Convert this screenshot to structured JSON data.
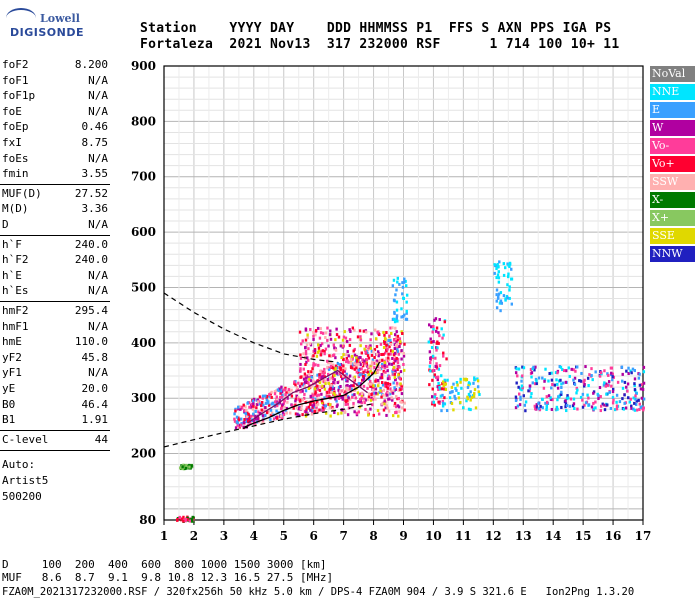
{
  "logo": {
    "line1": "Lowell",
    "line2": "DIGISONDE"
  },
  "header": {
    "line1": "Station    YYYY DAY    DDD HHMMSS P1  FFS S AXN PPS IGA PS",
    "line2": "Fortaleza  2021 Nov13  317 232000 RSF      1 714 100 10+ 11"
  },
  "params": [
    {
      "k": "foF2",
      "v": "8.200"
    },
    {
      "k": "foF1",
      "v": "N/A"
    },
    {
      "k": "foF1p",
      "v": "N/A"
    },
    {
      "k": "foE",
      "v": "N/A"
    },
    {
      "k": "foEp",
      "v": "0.46"
    },
    {
      "k": "fxI",
      "v": "8.75"
    },
    {
      "k": "foEs",
      "v": "N/A"
    },
    {
      "k": "fmin",
      "v": "3.55"
    },
    {
      "k": "MUF(D)",
      "v": "27.52"
    },
    {
      "k": "M(D)",
      "v": "3.36"
    },
    {
      "k": "D",
      "v": "N/A"
    },
    {
      "k": "h`F",
      "v": "240.0"
    },
    {
      "k": "h`F2",
      "v": "240.0"
    },
    {
      "k": "h`E",
      "v": "N/A"
    },
    {
      "k": "h`Es",
      "v": "N/A"
    },
    {
      "k": "hmF2",
      "v": "295.4"
    },
    {
      "k": "hmF1",
      "v": "N/A"
    },
    {
      "k": "hmE",
      "v": "110.0"
    },
    {
      "k": "yF2",
      "v": "45.8"
    },
    {
      "k": "yF1",
      "v": "N/A"
    },
    {
      "k": "yE",
      "v": "20.0"
    },
    {
      "k": "B0",
      "v": "46.4"
    },
    {
      "k": "B1",
      "v": "1.91"
    },
    {
      "k": "C-level",
      "v": "44"
    }
  ],
  "autoscaling": {
    "label": "Auto:",
    "software": "Artist5",
    "version": "500200"
  },
  "legend": [
    {
      "label": "NoVal",
      "color": "#808080",
      "text": "#ffffff"
    },
    {
      "label": "NNE",
      "color": "#00e5ff",
      "text": "#ffffff"
    },
    {
      "label": "E",
      "color": "#3aa0ff",
      "text": "#ffffff"
    },
    {
      "label": "W",
      "color": "#b000a0",
      "text": "#ffffff"
    },
    {
      "label": "Vo-",
      "color": "#ff3c9a",
      "text": "#ffffff"
    },
    {
      "label": "Vo+",
      "color": "#ff0030",
      "text": "#ffffff"
    },
    {
      "label": "SSW",
      "color": "#ffb0b0",
      "text": "#ffffff"
    },
    {
      "label": "X-",
      "color": "#007a00",
      "text": "#ffffff"
    },
    {
      "label": "X+",
      "color": "#88c860",
      "text": "#ffffff"
    },
    {
      "label": "SSE",
      "color": "#e0d800",
      "text": "#ffffff"
    },
    {
      "label": "NNW",
      "color": "#2020c0",
      "text": "#ffffff"
    }
  ],
  "footer": {
    "line1": "D     100  200  400  600  800 1000 1500 3000 [km]",
    "line2": "MUF   8.6  8.7  9.1  9.8 10.8 12.3 16.5 27.5 [MHz]",
    "line3": "FZA0M_2021317232000.RSF / 320fx256h 50 kHz 5.0 km / DPS-4 FZA0M 904 / 3.9 S 321.6 E   Ion2Png 1.3.20"
  },
  "chart_data": {
    "type": "scatter",
    "xlabel": "",
    "ylabel": "",
    "xlim": [
      1,
      17
    ],
    "ylim": [
      80,
      900
    ],
    "x_ticks": [
      1,
      2,
      3,
      4,
      5,
      6,
      7,
      8,
      9,
      10,
      11,
      12,
      13,
      14,
      15,
      16,
      17
    ],
    "y_ticks": [
      80,
      200,
      300,
      400,
      500,
      600,
      700,
      800,
      900
    ],
    "grid": true,
    "profile_dashed": {
      "x": [
        1.0,
        2.0,
        3.0,
        4.0,
        5.0,
        6.0,
        6.8
      ],
      "y": [
        490,
        455,
        425,
        400,
        380,
        370,
        365
      ]
    },
    "trace_lower_dashed": {
      "x": [
        1.0,
        2.0,
        3.0,
        4.0,
        5.0,
        6.0,
        7.0,
        8.0
      ],
      "y": [
        212,
        225,
        238,
        250,
        262,
        272,
        280,
        290
      ]
    },
    "trace_o_solid": {
      "x": [
        3.7,
        4.0,
        4.5,
        5.0,
        5.5,
        6.0,
        6.5,
        7.0,
        7.5,
        8.0,
        8.2
      ],
      "y": [
        248,
        255,
        265,
        278,
        288,
        295,
        300,
        305,
        320,
        345,
        365
      ]
    },
    "trace_x_solid": {
      "x": [
        3.8,
        4.2,
        4.8,
        5.3,
        5.8,
        6.3,
        6.8,
        7.3,
        7.8
      ],
      "y": [
        255,
        270,
        290,
        310,
        320,
        335,
        350,
        330,
        310
      ]
    },
    "echo_clusters": [
      {
        "x": [
          3.3,
          8.9
        ],
        "y": [
          245,
          380
        ],
        "colors": [
          "#ff3c9a",
          "#ff0030",
          "#b000a0",
          "#ffb0b0",
          "#3aa0ff"
        ]
      },
      {
        "x": [
          5.5,
          9.0
        ],
        "y": [
          270,
          430
        ],
        "colors": [
          "#ff3c9a",
          "#ff0030",
          "#b000a0",
          "#e0d800",
          "#ffb0b0"
        ]
      },
      {
        "x": [
          9.8,
          10.4
        ],
        "y": [
          290,
          450
        ],
        "colors": [
          "#ff3c9a",
          "#ff0030",
          "#b000a0",
          "#00e5ff"
        ]
      },
      {
        "x": [
          10.2,
          11.5
        ],
        "y": [
          280,
          340
        ],
        "colors": [
          "#e0d800",
          "#00e5ff",
          "#3aa0ff"
        ]
      },
      {
        "x": [
          12.7,
          17.0
        ],
        "y": [
          280,
          360
        ],
        "colors": [
          "#b000a0",
          "#ff3c9a",
          "#00e5ff",
          "#3aa0ff",
          "#2020c0"
        ]
      },
      {
        "x": [
          1.4,
          2.0
        ],
        "y": [
          80,
          88
        ],
        "colors": [
          "#ff0030",
          "#007a00",
          "#ff3c9a"
        ]
      },
      {
        "x": [
          1.5,
          1.9
        ],
        "y": [
          175,
          182
        ],
        "colors": [
          "#007a00",
          "#88c860"
        ]
      },
      {
        "x": [
          8.6,
          9.1
        ],
        "y": [
          440,
          520
        ],
        "colors": [
          "#00e5ff",
          "#3aa0ff"
        ]
      },
      {
        "x": [
          12.0,
          12.6
        ],
        "y": [
          460,
          550
        ],
        "colors": [
          "#00e5ff",
          "#3aa0ff"
        ]
      }
    ]
  }
}
